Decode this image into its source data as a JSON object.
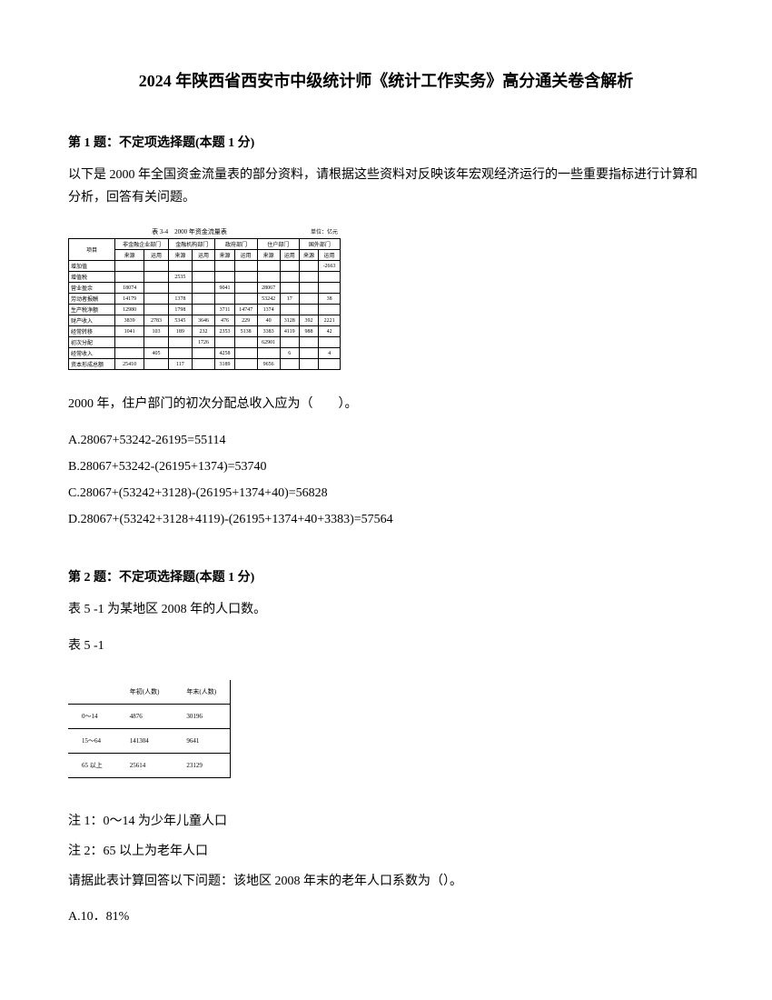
{
  "title": "2024 年陕西省西安市中级统计师《统计工作实务》高分通关卷含解析",
  "q1": {
    "header": "第 1 题：不定项选择题(本题 1 分)",
    "text": "以下是 2000 年全国资金流量表的部分资料，请根据这些资料对反映该年宏观经济运行的一些重要指标进行计算和分析，回答有关问题。",
    "table_title": "表 3-4　2000 年资金流量表",
    "table_unit": "单位：亿元",
    "cols_main": [
      "项目",
      "非金融企业部门",
      "金融机构部门",
      "政府部门",
      "住户部门",
      "国外部门"
    ],
    "cols_sub": [
      "来源",
      "运用",
      "来源",
      "运用",
      "来源",
      "运用",
      "来源",
      "运用",
      "来源",
      "运用"
    ],
    "rows": [
      [
        "增加值",
        "",
        "",
        "",
        "",
        "",
        "",
        "",
        "",
        "",
        "-2663"
      ],
      [
        "增值税",
        "",
        "",
        "2535",
        "",
        "",
        "",
        "",
        "",
        "",
        ""
      ],
      [
        "营业盈余",
        "18074",
        "",
        "",
        "",
        "9041",
        "",
        "28067",
        "",
        "",
        ""
      ],
      [
        "劳动者报酬",
        "14179",
        "",
        "1378",
        "",
        "",
        "",
        "53242",
        "17",
        "",
        "38"
      ],
      [
        "生产税净额",
        "12980",
        "",
        "1798",
        "",
        "3711",
        "14747",
        "1374",
        "",
        "",
        ""
      ],
      [
        "财产收入",
        "3839",
        "2783",
        "5345",
        "3646",
        "476",
        "229",
        "40",
        "3128",
        "392",
        "2221"
      ],
      [
        "经常转移",
        "1041",
        "103",
        "189",
        "232",
        "2353",
        "5138",
        "3383",
        "4119",
        "988",
        "42"
      ],
      [
        "初次分配",
        "",
        "",
        "",
        "1726",
        "",
        "",
        "62901",
        "",
        "",
        ""
      ],
      [
        "经常收入",
        "",
        "405",
        "",
        "",
        "4258",
        "",
        "",
        "6",
        "",
        "4"
      ],
      [
        "资本形成总额",
        "25410",
        "",
        "117",
        "",
        "3189",
        "",
        "9656",
        "",
        "",
        ""
      ]
    ],
    "question": "2000 年，住户部门的初次分配总收入应为（　　）。",
    "options": [
      "A.28067+53242-26195=55114",
      "B.28067+53242-(26195+1374)=53740",
      "C.28067+(53242+3128)-(26195+1374+40)=56828",
      "D.28067+(53242+3128+4119)-(26195+1374+40+3383)=57564"
    ]
  },
  "q2": {
    "header": "第 2 题：不定项选择题(本题 1 分)",
    "text1": "表 5 -1 为某地区 2008 年的人口数。",
    "text2": "表 5 -1",
    "table_headers": [
      "",
      "年初(人数)",
      "年末(人数)"
    ],
    "table_rows": [
      [
        "0～14",
        "4876",
        "30196"
      ],
      [
        "15～64",
        "141304",
        "9641"
      ],
      [
        "65 以上",
        "25614",
        "23129"
      ]
    ],
    "note1": "注 1：0～14 为少年儿童人口",
    "note2": "注 2：65 以上为老年人口",
    "question": "请据此表计算回答以下问题：该地区 2008 年末的老年人口系数为（）。",
    "options": [
      "A.10．81%"
    ]
  }
}
